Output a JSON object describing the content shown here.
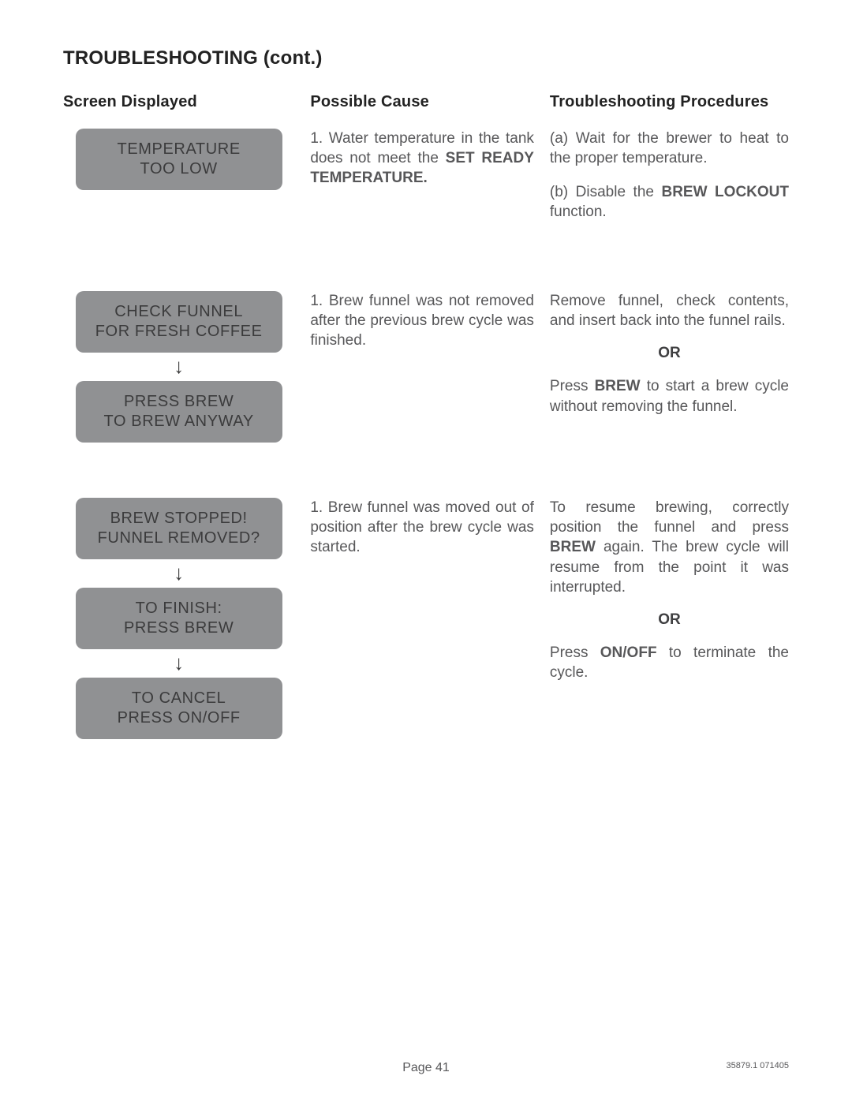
{
  "title": "TROUBLESHOOTING (cont.)",
  "headers": {
    "screen": "Screen Displayed",
    "cause": "Possible Cause",
    "proc": "Troubleshooting Procedures"
  },
  "rows": [
    {
      "screens": [
        {
          "line1": "TEMPERATURE",
          "line2": "TOO LOW"
        }
      ],
      "cause_parts": [
        {
          "t": "1. Water temperature in the tank does not meet the ",
          "b": false
        },
        {
          "t": "SET READY TEMPERATURE.",
          "b": true
        }
      ],
      "proc": [
        {
          "type": "para",
          "parts": [
            {
              "t": "(a) Wait for the brewer to heat to the proper temperature.",
              "b": false
            }
          ]
        },
        {
          "type": "para",
          "parts": [
            {
              "t": "(b) Disable the ",
              "b": false
            },
            {
              "t": "BREW LOCKOUT",
              "b": true
            },
            {
              "t": " function.",
              "b": false
            }
          ]
        }
      ]
    },
    {
      "screens": [
        {
          "line1": "CHECK FUNNEL",
          "line2": "FOR FRESH COFFEE"
        },
        {
          "line1": "PRESS BREW",
          "line2": "TO BREW ANYWAY"
        }
      ],
      "cause_parts": [
        {
          "t": "1. Brew funnel was not removed after the previous brew cycle was finished.",
          "b": false
        }
      ],
      "proc": [
        {
          "type": "para",
          "parts": [
            {
              "t": "Remove funnel, check contents, and insert back into the funnel rails.",
              "b": false
            }
          ]
        },
        {
          "type": "or",
          "text": "OR"
        },
        {
          "type": "para",
          "parts": [
            {
              "t": "Press ",
              "b": false
            },
            {
              "t": "BREW",
              "b": true
            },
            {
              "t": " to start a brew cycle without removing the funnel.",
              "b": false
            }
          ]
        }
      ]
    },
    {
      "screens": [
        {
          "line1": "BREW STOPPED!",
          "line2": "FUNNEL REMOVED?"
        },
        {
          "line1": "TO FINISH:",
          "line2": "PRESS BREW"
        },
        {
          "line1": "TO CANCEL",
          "line2": "PRESS ON/OFF"
        }
      ],
      "cause_parts": [
        {
          "t": "1. Brew funnel was moved out of position after the brew cycle was started.",
          "b": false
        }
      ],
      "proc": [
        {
          "type": "para",
          "parts": [
            {
              "t": "To resume brewing, correctly position the funnel and press ",
              "b": false
            },
            {
              "t": "BREW",
              "b": true
            },
            {
              "t": " again. The brew cycle will resume from the point it was interrupted.",
              "b": false
            }
          ]
        },
        {
          "type": "or",
          "text": "OR"
        },
        {
          "type": "para",
          "parts": [
            {
              "t": "Press ",
              "b": false
            },
            {
              "t": "ON/OFF",
              "b": true
            },
            {
              "t": " to terminate the cycle.",
              "b": false
            }
          ]
        }
      ]
    }
  ],
  "page_label": "Page 41",
  "doc_code": "35879.1 071405",
  "colors": {
    "screen_bg": "#909193",
    "screen_fg": "#3b3b3c",
    "body_text": "#575759"
  }
}
